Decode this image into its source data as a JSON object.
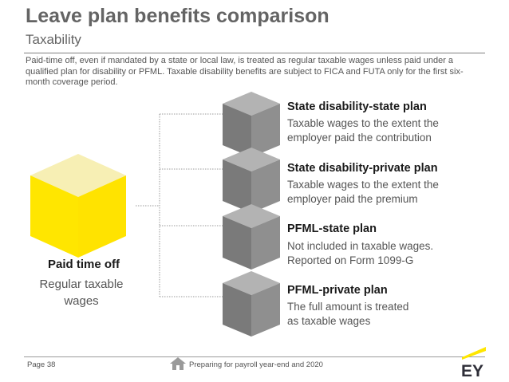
{
  "header": {
    "title": "Leave plan benefits comparison",
    "subtitle": "Taxability"
  },
  "intro": "Paid-time off, even if mandated by a state or local law, is treated as regular taxable wages unless paid under a qualified plan for disability or PFML. Taxable disability benefits are subject to FICA and FUTA only for the first six-month coverage period.",
  "source": {
    "title": "Paid time off",
    "desc_lines": [
      "Regular taxable",
      "wages"
    ]
  },
  "options": [
    {
      "title": "State disability-state plan",
      "desc_lines": [
        "Taxable wages to the extent the",
        "employer paid the contribution"
      ]
    },
    {
      "title": "State disability-private plan",
      "desc_lines": [
        "Taxable wages to the extent the",
        "employer paid the premium"
      ]
    },
    {
      "title": "PFML-state plan",
      "desc_lines": [
        "Not included in taxable wages.",
        "Reported on Form 1099-G"
      ]
    },
    {
      "title": "PFML-private plan",
      "desc_lines": [
        "The full amount is treated",
        "as taxable wages"
      ]
    }
  ],
  "footer": {
    "page_label": "Page 38",
    "text": "Preparing for payroll year-end and 2020",
    "logo_text": "EY"
  },
  "icons": {
    "source_cube": "yellow-cube-icon",
    "option_cube": "gray-cube-icon",
    "home": "home-icon",
    "logo": "ey-logo"
  },
  "colors": {
    "yellow": "#FFE600",
    "gray_cube": "#808080",
    "title_gray": "#646464"
  }
}
